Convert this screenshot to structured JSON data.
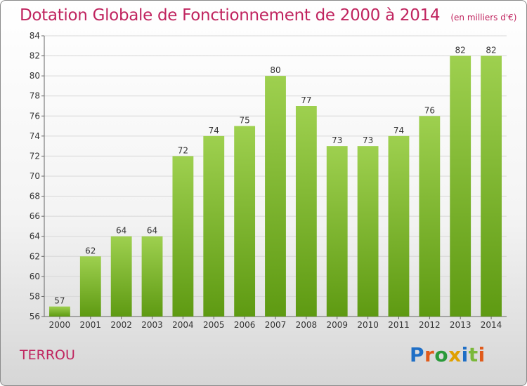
{
  "title": "Dotation Globale de Fonctionnement de 2000 à 2014",
  "unit": "(en milliers d'€)",
  "commune": "TERROU",
  "logo": {
    "text": "Proxiti",
    "letter_colors": [
      "#1f6fc6",
      "#e05a1a",
      "#2a9a3a",
      "#e0a000",
      "#1f6fc6",
      "#7ab83a",
      "#e05a1a"
    ]
  },
  "colors": {
    "bar_top": "#9ed04f",
    "bar_bottom": "#5e9a12",
    "title": "#c0245f",
    "grid": "#d8d8d8"
  },
  "chart_data": {
    "type": "bar",
    "categories": [
      "2000",
      "2001",
      "2002",
      "2003",
      "2004",
      "2005",
      "2006",
      "2007",
      "2008",
      "2009",
      "2010",
      "2011",
      "2012",
      "2013",
      "2014"
    ],
    "values": [
      57,
      62,
      64,
      64,
      72,
      74,
      75,
      80,
      77,
      73,
      73,
      74,
      76,
      82,
      82
    ],
    "ylim": [
      56,
      84
    ],
    "yticks": [
      56,
      58,
      60,
      62,
      64,
      66,
      68,
      70,
      72,
      74,
      76,
      78,
      80,
      82,
      84
    ],
    "grid": true
  }
}
